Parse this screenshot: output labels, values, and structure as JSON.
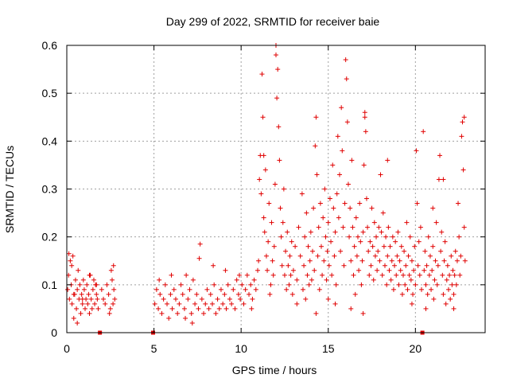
{
  "chart_data": {
    "type": "scatter",
    "title": "Day 299 of 2022, SRMTID for receiver baie",
    "xlabel": "GPS time / hours",
    "ylabel": "SRMTID / TECUs",
    "xlim": [
      0,
      24
    ],
    "ylim": [
      0,
      0.6
    ],
    "x_ticks": [
      0,
      5,
      10,
      15,
      20
    ],
    "y_ticks": [
      0,
      0.1,
      0.2,
      0.3,
      0.4,
      0.5,
      0.6
    ],
    "x_tick_labels": [
      "0",
      "5",
      "10",
      "15",
      "20"
    ],
    "y_tick_labels": [
      "0",
      "0.1",
      "0.2",
      "0.3",
      "0.4",
      "0.5",
      "0.6"
    ],
    "grid": true,
    "marker": "+",
    "color": "#e00000",
    "data_gap_markers_x": [
      1.9,
      4.95,
      20.4
    ],
    "points": [
      [
        0.05,
        0.09
      ],
      [
        0.1,
        0.12
      ],
      [
        0.15,
        0.07
      ],
      [
        0.2,
        0.15
      ],
      [
        0.25,
        0.1
      ],
      [
        0.3,
        0.06
      ],
      [
        0.35,
        0.16
      ],
      [
        0.4,
        0.03
      ],
      [
        0.45,
        0.08
      ],
      [
        0.5,
        0.11
      ],
      [
        0.55,
        0.05
      ],
      [
        0.6,
        0.09
      ],
      [
        0.65,
        0.13
      ],
      [
        0.7,
        0.07
      ],
      [
        0.75,
        0.1
      ],
      [
        0.8,
        0.04
      ],
      [
        0.85,
        0.08
      ],
      [
        0.9,
        0.06
      ],
      [
        0.95,
        0.11
      ],
      [
        1.0,
        0.09
      ],
      [
        1.05,
        0.05
      ],
      [
        1.1,
        0.07
      ],
      [
        1.15,
        0.1
      ],
      [
        1.2,
        0.06
      ],
      [
        1.25,
        0.08
      ],
      [
        1.3,
        0.04
      ],
      [
        1.35,
        0.12
      ],
      [
        1.4,
        0.07
      ],
      [
        1.45,
        0.05
      ],
      [
        1.5,
        0.09
      ],
      [
        1.55,
        0.11
      ],
      [
        1.6,
        0.06
      ],
      [
        1.65,
        0.1
      ],
      [
        1.7,
        0.08
      ],
      [
        1.75,
        0.07
      ],
      [
        1.8,
        0.05
      ],
      [
        2.0,
        0.09
      ],
      [
        2.1,
        0.07
      ],
      [
        2.2,
        0.06
      ],
      [
        2.3,
        0.1
      ],
      [
        2.4,
        0.08
      ],
      [
        2.5,
        0.05
      ],
      [
        2.55,
        0.13
      ],
      [
        2.6,
        0.11
      ],
      [
        2.65,
        0.06
      ],
      [
        2.7,
        0.09
      ],
      [
        2.75,
        0.07
      ],
      [
        0.12,
        0.165
      ],
      [
        0.28,
        0.14
      ],
      [
        0.6,
        0.02
      ],
      [
        1.3,
        0.12
      ],
      [
        2.45,
        0.04
      ],
      [
        2.68,
        0.14
      ],
      [
        0.4,
        0.08
      ],
      [
        0.9,
        0.07
      ],
      [
        1.7,
        0.1
      ],
      [
        5.05,
        0.06
      ],
      [
        5.15,
        0.09
      ],
      [
        5.25,
        0.05
      ],
      [
        5.35,
        0.08
      ],
      [
        5.45,
        0.04
      ],
      [
        5.55,
        0.07
      ],
      [
        5.65,
        0.1
      ],
      [
        5.75,
        0.06
      ],
      [
        5.85,
        0.03
      ],
      [
        5.95,
        0.08
      ],
      [
        6.05,
        0.05
      ],
      [
        6.15,
        0.09
      ],
      [
        6.25,
        0.07
      ],
      [
        6.35,
        0.04
      ],
      [
        6.45,
        0.06
      ],
      [
        6.55,
        0.1
      ],
      [
        6.65,
        0.08
      ],
      [
        6.75,
        0.05
      ],
      [
        6.85,
        0.12
      ],
      [
        6.95,
        0.07
      ],
      [
        7.05,
        0.09
      ],
      [
        7.15,
        0.04
      ],
      [
        7.25,
        0.11
      ],
      [
        7.35,
        0.06
      ],
      [
        7.45,
        0.08
      ],
      [
        7.55,
        0.05
      ],
      [
        7.65,
        0.185
      ],
      [
        7.75,
        0.07
      ],
      [
        7.85,
        0.04
      ],
      [
        7.95,
        0.06
      ],
      [
        8.05,
        0.09
      ],
      [
        8.15,
        0.05
      ],
      [
        8.25,
        0.08
      ],
      [
        8.35,
        0.06
      ],
      [
        8.45,
        0.1
      ],
      [
        8.55,
        0.04
      ],
      [
        8.65,
        0.07
      ],
      [
        8.75,
        0.05
      ],
      [
        8.85,
        0.09
      ],
      [
        8.95,
        0.06
      ],
      [
        9.05,
        0.08
      ],
      [
        9.15,
        0.05
      ],
      [
        9.25,
        0.1
      ],
      [
        9.35,
        0.07
      ],
      [
        9.45,
        0.06
      ],
      [
        9.55,
        0.09
      ],
      [
        9.65,
        0.05
      ],
      [
        9.75,
        0.11
      ],
      [
        9.85,
        0.08
      ],
      [
        9.95,
        0.07
      ],
      [
        10.05,
        0.1
      ],
      [
        10.15,
        0.06
      ],
      [
        10.25,
        0.09
      ],
      [
        10.35,
        0.12
      ],
      [
        10.45,
        0.08
      ],
      [
        10.55,
        0.1
      ],
      [
        10.65,
        0.07
      ],
      [
        10.75,
        0.11
      ],
      [
        10.85,
        0.09
      ],
      [
        10.95,
        0.13
      ],
      [
        5.3,
        0.11
      ],
      [
        6.0,
        0.12
      ],
      [
        6.8,
        0.03
      ],
      [
        7.2,
        0.02
      ],
      [
        7.6,
        0.155
      ],
      [
        8.4,
        0.14
      ],
      [
        9.1,
        0.13
      ],
      [
        9.9,
        0.12
      ],
      [
        10.6,
        0.05
      ],
      [
        11.0,
        0.15
      ],
      [
        11.05,
        0.32
      ],
      [
        11.1,
        0.37
      ],
      [
        11.15,
        0.29
      ],
      [
        11.2,
        0.54
      ],
      [
        11.25,
        0.45
      ],
      [
        11.3,
        0.24
      ],
      [
        11.35,
        0.21
      ],
      [
        11.4,
        0.34
      ],
      [
        11.45,
        0.16
      ],
      [
        11.5,
        0.13
      ],
      [
        11.55,
        0.19
      ],
      [
        11.6,
        0.27
      ],
      [
        11.65,
        0.08
      ],
      [
        11.7,
        0.1
      ],
      [
        11.75,
        0.23
      ],
      [
        11.8,
        0.15
      ],
      [
        11.85,
        0.12
      ],
      [
        11.9,
        0.18
      ],
      [
        11.95,
        0.31
      ],
      [
        12.0,
        0.58
      ],
      [
        12.05,
        0.49
      ],
      [
        12.1,
        0.55
      ],
      [
        12.15,
        0.43
      ],
      [
        12.2,
        0.36
      ],
      [
        12.25,
        0.26
      ],
      [
        12.3,
        0.2
      ],
      [
        12.35,
        0.14
      ],
      [
        12.4,
        0.23
      ],
      [
        12.45,
        0.3
      ],
      [
        12.5,
        0.12
      ],
      [
        12.55,
        0.17
      ],
      [
        12.6,
        0.09
      ],
      [
        12.65,
        0.21
      ],
      [
        12.7,
        0.14
      ],
      [
        12.75,
        0.1
      ],
      [
        12.8,
        0.16
      ],
      [
        12.85,
        0.12
      ],
      [
        12.9,
        0.19
      ],
      [
        12.95,
        0.08
      ],
      [
        13.0,
        0.13
      ],
      [
        13.1,
        0.18
      ],
      [
        13.2,
        0.11
      ],
      [
        13.3,
        0.22
      ],
      [
        13.4,
        0.16
      ],
      [
        13.5,
        0.29
      ],
      [
        13.55,
        0.09
      ],
      [
        13.6,
        0.14
      ],
      [
        13.65,
        0.2
      ],
      [
        13.7,
        0.07
      ],
      [
        13.75,
        0.25
      ],
      [
        13.8,
        0.12
      ],
      [
        13.85,
        0.18
      ],
      [
        13.9,
        0.1
      ],
      [
        13.95,
        0.15
      ],
      [
        14.0,
        0.21
      ],
      [
        14.05,
        0.11
      ],
      [
        14.1,
        0.17
      ],
      [
        14.15,
        0.26
      ],
      [
        14.2,
        0.13
      ],
      [
        14.25,
        0.39
      ],
      [
        14.3,
        0.45
      ],
      [
        14.35,
        0.33
      ],
      [
        14.4,
        0.16
      ],
      [
        14.45,
        0.22
      ],
      [
        14.5,
        0.09
      ],
      [
        14.55,
        0.27
      ],
      [
        14.6,
        0.18
      ],
      [
        14.65,
        0.12
      ],
      [
        14.7,
        0.24
      ],
      [
        14.75,
        0.15
      ],
      [
        14.8,
        0.3
      ],
      [
        14.85,
        0.2
      ],
      [
        14.9,
        0.11
      ],
      [
        14.95,
        0.17
      ],
      [
        15.0,
        0.23
      ],
      [
        15.05,
        0.14
      ],
      [
        15.1,
        0.28
      ],
      [
        15.15,
        0.19
      ],
      [
        15.2,
        0.12
      ],
      [
        15.25,
        0.35
      ],
      [
        15.3,
        0.26
      ],
      [
        15.35,
        0.16
      ],
      [
        15.4,
        0.21
      ],
      [
        15.45,
        0.1
      ],
      [
        15.5,
        0.29
      ],
      [
        15.55,
        0.41
      ],
      [
        15.6,
        0.24
      ],
      [
        15.65,
        0.33
      ],
      [
        15.7,
        0.17
      ],
      [
        15.75,
        0.47
      ],
      [
        15.8,
        0.38
      ],
      [
        15.85,
        0.22
      ],
      [
        15.9,
        0.14
      ],
      [
        15.95,
        0.27
      ],
      [
        16.0,
        0.57
      ],
      [
        16.05,
        0.53
      ],
      [
        16.1,
        0.44
      ],
      [
        16.15,
        0.31
      ],
      [
        16.2,
        0.2
      ],
      [
        16.25,
        0.26
      ],
      [
        16.3,
        0.15
      ],
      [
        16.35,
        0.36
      ],
      [
        16.4,
        0.22
      ],
      [
        16.45,
        0.12
      ],
      [
        16.5,
        0.18
      ],
      [
        16.55,
        0.08
      ],
      [
        16.6,
        0.24
      ],
      [
        16.65,
        0.16
      ],
      [
        16.7,
        0.2
      ],
      [
        16.75,
        0.13
      ],
      [
        16.8,
        0.27
      ],
      [
        16.85,
        0.19
      ],
      [
        16.9,
        0.1
      ],
      [
        16.95,
        0.15
      ],
      [
        17.0,
        0.21
      ],
      [
        17.05,
        0.35
      ],
      [
        17.1,
        0.45
      ],
      [
        17.15,
        0.42
      ],
      [
        17.2,
        0.28
      ],
      [
        17.25,
        0.22
      ],
      [
        17.3,
        0.17
      ],
      [
        17.35,
        0.12
      ],
      [
        17.4,
        0.19
      ],
      [
        17.45,
        0.14
      ],
      [
        17.5,
        0.26
      ],
      [
        17.55,
        0.18
      ],
      [
        17.6,
        0.11
      ],
      [
        17.65,
        0.23
      ],
      [
        17.7,
        0.16
      ],
      [
        17.75,
        0.2
      ],
      [
        17.8,
        0.13
      ],
      [
        17.85,
        0.17
      ],
      [
        17.9,
        0.22
      ],
      [
        17.95,
        0.15
      ],
      [
        18.0,
        0.33
      ],
      [
        18.05,
        0.21
      ],
      [
        18.1,
        0.12
      ],
      [
        18.15,
        0.25
      ],
      [
        18.2,
        0.18
      ],
      [
        18.25,
        0.14
      ],
      [
        18.3,
        0.2
      ],
      [
        18.35,
        0.1
      ],
      [
        18.4,
        0.16
      ],
      [
        18.45,
        0.22
      ],
      [
        18.5,
        0.13
      ],
      [
        18.55,
        0.18
      ],
      [
        18.6,
        0.11
      ],
      [
        18.65,
        0.15
      ],
      [
        18.7,
        0.2
      ],
      [
        18.75,
        0.09
      ],
      [
        18.8,
        0.14
      ],
      [
        18.85,
        0.19
      ],
      [
        18.9,
        0.12
      ],
      [
        18.95,
        0.16
      ],
      [
        19.0,
        0.21
      ],
      [
        19.05,
        0.1
      ],
      [
        19.1,
        0.15
      ],
      [
        19.15,
        0.13
      ],
      [
        19.2,
        0.18
      ],
      [
        19.25,
        0.08
      ],
      [
        19.3,
        0.12
      ],
      [
        19.35,
        0.17
      ],
      [
        19.4,
        0.1
      ],
      [
        19.45,
        0.14
      ],
      [
        19.5,
        0.23
      ],
      [
        19.55,
        0.09
      ],
      [
        19.6,
        0.16
      ],
      [
        19.65,
        0.12
      ],
      [
        19.7,
        0.2
      ],
      [
        19.75,
        0.11
      ],
      [
        19.8,
        0.15
      ],
      [
        19.85,
        0.08
      ],
      [
        19.9,
        0.13
      ],
      [
        19.95,
        0.18
      ],
      [
        20.0,
        0.1
      ],
      [
        20.05,
        0.38
      ],
      [
        20.1,
        0.27
      ],
      [
        20.15,
        0.14
      ],
      [
        20.2,
        0.19
      ],
      [
        20.25,
        0.12
      ],
      [
        20.3,
        0.22
      ],
      [
        20.35,
        0.09
      ],
      [
        20.45,
        0.42
      ],
      [
        20.5,
        0.13
      ],
      [
        20.55,
        0.17
      ],
      [
        20.6,
        0.1
      ],
      [
        20.65,
        0.14
      ],
      [
        20.7,
        0.08
      ],
      [
        20.75,
        0.2
      ],
      [
        20.8,
        0.12
      ],
      [
        20.85,
        0.16
      ],
      [
        20.9,
        0.09
      ],
      [
        20.95,
        0.13
      ],
      [
        21.0,
        0.18
      ],
      [
        21.05,
        0.07
      ],
      [
        21.1,
        0.11
      ],
      [
        21.15,
        0.15
      ],
      [
        21.2,
        0.23
      ],
      [
        21.25,
        0.1
      ],
      [
        21.3,
        0.14
      ],
      [
        21.35,
        0.32
      ],
      [
        21.4,
        0.37
      ],
      [
        21.45,
        0.17
      ],
      [
        21.5,
        0.21
      ],
      [
        21.55,
        0.12
      ],
      [
        21.6,
        0.08
      ],
      [
        21.65,
        0.15
      ],
      [
        21.7,
        0.19
      ],
      [
        21.75,
        0.06
      ],
      [
        21.8,
        0.11
      ],
      [
        21.85,
        0.14
      ],
      [
        21.9,
        0.09
      ],
      [
        21.95,
        0.12
      ],
      [
        22.0,
        0.07
      ],
      [
        22.05,
        0.16
      ],
      [
        22.1,
        0.1
      ],
      [
        22.15,
        0.13
      ],
      [
        22.2,
        0.08
      ],
      [
        22.25,
        0.12
      ],
      [
        22.3,
        0.17
      ],
      [
        22.35,
        0.1
      ],
      [
        22.4,
        0.15
      ],
      [
        22.45,
        0.27
      ],
      [
        22.5,
        0.2
      ],
      [
        22.55,
        0.12
      ],
      [
        22.6,
        0.16
      ],
      [
        22.65,
        0.41
      ],
      [
        22.7,
        0.44
      ],
      [
        22.75,
        0.34
      ],
      [
        22.8,
        0.22
      ],
      [
        22.85,
        0.15
      ],
      [
        11.3,
        0.37
      ],
      [
        12.0,
        0.6
      ],
      [
        13.2,
        0.06
      ],
      [
        14.3,
        0.04
      ],
      [
        15.0,
        0.07
      ],
      [
        15.4,
        0.06
      ],
      [
        16.3,
        0.05
      ],
      [
        17.0,
        0.04
      ],
      [
        17.1,
        0.46
      ],
      [
        18.4,
        0.36
      ],
      [
        19.8,
        0.06
      ],
      [
        20.6,
        0.05
      ],
      [
        21.0,
        0.26
      ],
      [
        21.6,
        0.32
      ],
      [
        22.2,
        0.05
      ],
      [
        22.8,
        0.45
      ]
    ]
  }
}
